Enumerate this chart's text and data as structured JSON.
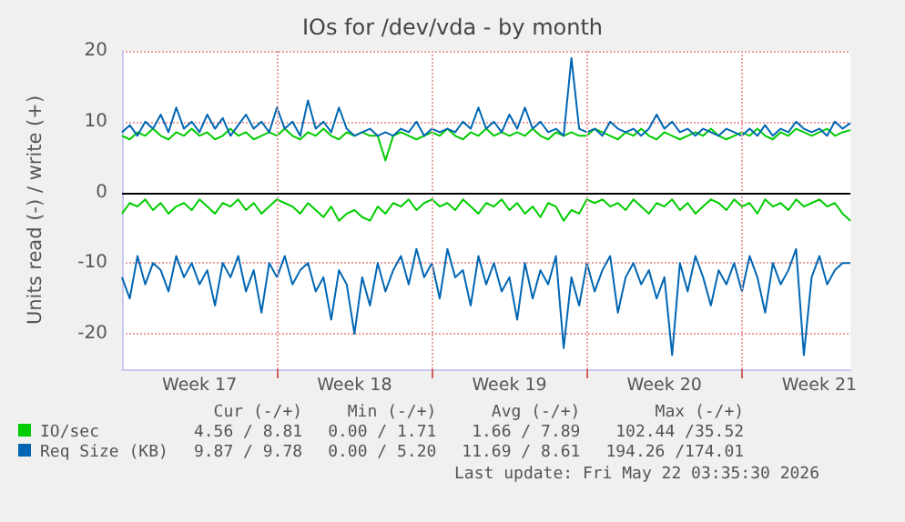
{
  "chart_data": {
    "type": "line",
    "title": "IOs for /dev/vda - by month",
    "ylabel": "Units read (-) / write (+)",
    "categories": [
      null,
      null,
      null,
      null,
      null,
      null,
      null,
      null,
      null,
      null,
      "Week 17",
      null,
      null,
      null,
      null,
      null,
      null,
      null,
      null,
      null,
      null,
      null,
      null,
      null,
      null,
      null,
      null,
      null,
      null,
      null,
      "Week 18",
      null,
      null,
      null,
      null,
      null,
      null,
      null,
      null,
      null,
      null,
      null,
      null,
      null,
      null,
      null,
      null,
      null,
      null,
      null,
      "Week 19",
      null,
      null,
      null,
      null,
      null,
      null,
      null,
      null,
      null,
      null,
      null,
      null,
      null,
      null,
      null,
      null,
      null,
      null,
      null,
      "Week 20",
      null,
      null,
      null,
      null,
      null,
      null,
      null,
      null,
      null,
      null,
      null,
      null,
      null,
      null,
      null,
      null,
      null,
      null,
      null,
      "Week 21",
      null,
      null,
      null,
      null
    ],
    "series": [
      {
        "name": "IO/sec",
        "color": "#00cc00",
        "values": [
          -3,
          -1.5,
          -2,
          -1,
          -2.5,
          -1.5,
          -3,
          -2,
          -1.5,
          -2.5,
          -1,
          -2,
          -3,
          -1.5,
          -2,
          -1,
          -2.5,
          -1.5,
          -3,
          -2,
          -1,
          -1.5,
          -2,
          -3,
          -1.5,
          -2.5,
          -3.5,
          -2,
          -4,
          -3,
          -2.5,
          -3.5,
          -4,
          -2,
          -3,
          -1.5,
          -2,
          -1,
          -2.5,
          -1.5,
          -1,
          -2,
          -1.5,
          -2.5,
          -1,
          -2,
          -3,
          -1.5,
          -2,
          -1,
          -2.5,
          -1.5,
          -3,
          -2,
          -3.5,
          -1.5,
          -2,
          -4,
          -2.5,
          -3,
          -1,
          -1.5,
          -1,
          -2,
          -1.5,
          -2.5,
          -1,
          -2,
          -3,
          -1.5,
          -2,
          -1,
          -2.5,
          -1.5,
          -3,
          -2,
          -1,
          -1.5,
          -2.5,
          -1,
          -2,
          -1.5,
          -3,
          -1,
          -2,
          -1.5,
          -2.5,
          -1,
          -2,
          -1.5,
          -1,
          -2,
          -1.5,
          -3,
          -4
        ]
      },
      {
        "color": "#00cc00",
        "values": [
          8,
          7.5,
          8.5,
          8,
          9,
          8,
          7.5,
          8.5,
          8,
          9,
          8,
          8.5,
          7.5,
          8,
          9,
          8,
          8.5,
          7.5,
          8,
          8.5,
          8,
          9,
          8,
          7.5,
          8.5,
          8,
          9,
          8,
          7.5,
          8.5,
          8,
          8.5,
          8,
          8,
          4.5,
          8,
          8.5,
          8,
          7.5,
          8,
          8.5,
          8,
          9,
          8,
          7.5,
          8.5,
          8,
          9,
          8,
          8.5,
          8,
          8.5,
          8,
          9,
          8,
          7.5,
          8.5,
          8,
          8.5,
          8,
          8,
          9,
          8.5,
          8,
          7.5,
          8.5,
          8,
          9,
          8,
          7.5,
          8.5,
          8,
          7.5,
          8,
          8.5,
          8,
          9,
          8,
          7.5,
          8,
          8.5,
          8,
          9,
          8,
          7.5,
          8.5,
          8,
          9,
          8.5,
          8,
          8.5,
          9,
          8,
          8.5,
          8.8
        ]
      },
      {
        "name": "Req Size (KB)",
        "color": "#0066b3",
        "values": [
          -12,
          -15,
          -9,
          -13,
          -10,
          -11,
          -14,
          -9,
          -12,
          -10,
          -13,
          -11,
          -16,
          -10,
          -12,
          -9,
          -14,
          -11,
          -17,
          -10,
          -12,
          -9,
          -13,
          -11,
          -10,
          -14,
          -12,
          -18,
          -11,
          -13,
          -20,
          -12,
          -16,
          -10,
          -14,
          -11,
          -9,
          -13,
          -8,
          -12,
          -10,
          -15,
          -8,
          -12,
          -11,
          -16,
          -9,
          -13,
          -10,
          -14,
          -12,
          -18,
          -10,
          -15,
          -11,
          -13,
          -9,
          -22,
          -12,
          -16,
          -10,
          -14,
          -11,
          -9,
          -17,
          -12,
          -10,
          -13,
          -11,
          -15,
          -12,
          -23,
          -10,
          -14,
          -9,
          -12,
          -16,
          -11,
          -13,
          -10,
          -14,
          -9,
          -12,
          -17,
          -10,
          -13,
          -11,
          -8,
          -23,
          -12,
          -9,
          -13,
          -11,
          -10,
          -10
        ]
      },
      {
        "color": "#0066b3",
        "values": [
          8.5,
          9.5,
          8,
          10,
          9,
          11,
          8.5,
          12,
          9,
          10,
          8.5,
          11,
          9,
          10.5,
          8,
          9.5,
          11,
          9,
          10,
          8.5,
          12,
          9,
          10,
          8,
          13,
          9,
          10,
          8.5,
          12,
          9,
          8,
          8.5,
          9,
          8,
          8.5,
          8,
          9,
          8.5,
          10,
          8,
          9,
          8.5,
          9,
          8.5,
          10,
          9,
          12,
          9,
          10,
          8.5,
          11,
          9,
          12,
          9,
          10,
          8.5,
          9,
          8,
          19,
          9,
          8.5,
          9,
          8,
          10,
          9,
          8.5,
          9,
          8,
          9,
          11,
          9,
          10,
          8.5,
          9,
          8,
          9,
          8.5,
          8,
          9,
          8.5,
          8,
          9,
          8,
          9.5,
          8,
          9,
          8.5,
          10,
          9,
          8.5,
          9,
          8,
          10,
          9,
          9.8
        ]
      }
    ],
    "ylim": [
      -25,
      20
    ],
    "yticks": [
      -20,
      -10,
      0,
      10,
      20
    ],
    "ref_lines": [
      {
        "axis": "y",
        "value": 0,
        "color": "#000000"
      }
    ],
    "grid": true,
    "legend": "bottom",
    "marker": "none",
    "line_style": "solid",
    "annotations": [
      "Cur (-/+)",
      "Min (-/+)",
      "Avg (-/+)",
      "Max (-/+)",
      "4.56 / 8.81",
      "0.00 / 1.71",
      "1.66 / 7.89",
      "102.44 /35.52",
      "9.87 / 9.78",
      "0.00 / 5.20",
      "11.69 / 8.61",
      "194.26 /174.01",
      "Last update: Fri May 22 03:35:30 2026"
    ]
  }
}
